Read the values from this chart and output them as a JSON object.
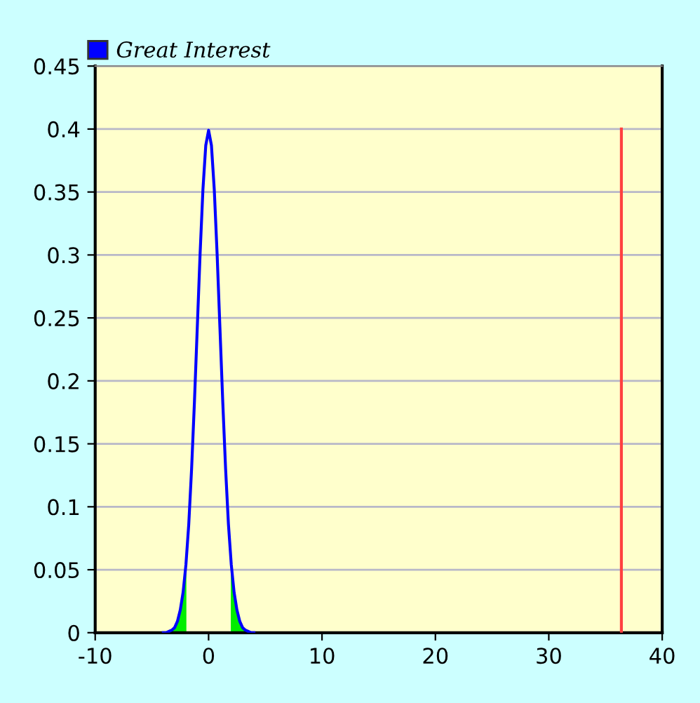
{
  "chart_data": {
    "type": "line",
    "series": [
      {
        "type": "area",
        "color": "#00ee00",
        "x": [
          -4,
          -3.5,
          -3,
          -2.5,
          -2,
          -1.96
        ],
        "values": [
          0,
          0.001,
          0.004,
          0.018,
          0.054,
          0.058
        ]
      },
      {
        "type": "area",
        "color": "#00ee00",
        "x": [
          1.96,
          2,
          2.5,
          3,
          3.5,
          4
        ],
        "values": [
          0.058,
          0.054,
          0.018,
          0.004,
          0.001,
          0
        ]
      },
      {
        "name": "Great Interest",
        "color": "#0000ff",
        "x": [
          -4,
          -3.75,
          -3.5,
          -3.25,
          -3,
          -2.75,
          -2.5,
          -2.25,
          -2,
          -1.75,
          -1.5,
          -1.25,
          -1,
          -0.75,
          -0.5,
          -0.25,
          0,
          0.25,
          0.5,
          0.75,
          1,
          1.25,
          1.5,
          1.75,
          2,
          2.25,
          2.5,
          2.75,
          3,
          3.25,
          3.5,
          3.75,
          4
        ],
        "values": [
          0,
          0,
          0.001,
          0.002,
          0.004,
          0.009,
          0.018,
          0.032,
          0.054,
          0.086,
          0.13,
          0.183,
          0.242,
          0.301,
          0.352,
          0.387,
          0.399,
          0.387,
          0.352,
          0.301,
          0.242,
          0.183,
          0.13,
          0.086,
          0.054,
          0.032,
          0.018,
          0.009,
          0.004,
          0.002,
          0.001,
          0,
          0
        ]
      },
      {
        "color": "#ff4040",
        "x": [
          36.4,
          36.4
        ],
        "values": [
          0,
          0.4
        ]
      }
    ],
    "xlim": [
      -10,
      40
    ],
    "xticks": [
      -10,
      0,
      10,
      20,
      30,
      40
    ],
    "ylim": [
      0,
      0.45
    ],
    "yticks": [
      0,
      0.05,
      0.1,
      0.15,
      0.2,
      0.25,
      0.3,
      0.35,
      0.4,
      0.45
    ],
    "grid": "y",
    "legend": "top left"
  }
}
